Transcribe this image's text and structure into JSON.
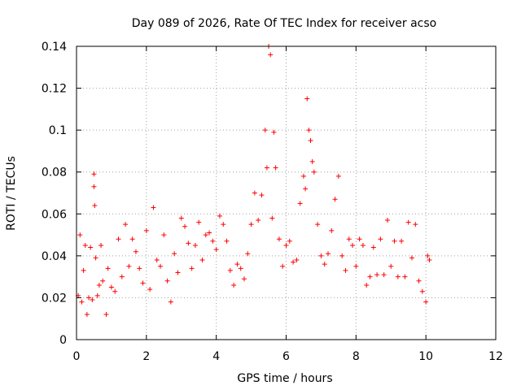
{
  "chart_data": {
    "type": "scatter",
    "title": "Day 089 of 2026, Rate Of TEC Index for receiver acso",
    "xlabel": "GPS time / hours",
    "ylabel": "ROTI / TECUs",
    "xlim": [
      0,
      12
    ],
    "ylim": [
      0,
      0.14
    ],
    "xticks": [
      "0",
      "2",
      "4",
      "6",
      "8",
      "10",
      "12"
    ],
    "yticks": [
      "0",
      "0.02",
      "0.04",
      "0.06",
      "0.08",
      "0.1",
      "0.12",
      "0.14"
    ],
    "grid": true,
    "marker": "plus",
    "color": "#ff0000",
    "series": [
      {
        "x": [
          0.05,
          0.1,
          0.15,
          0.2,
          0.25,
          0.3,
          0.35,
          0.4,
          0.45,
          0.5,
          0.5,
          0.52,
          0.55,
          0.6,
          0.65,
          0.7,
          0.75,
          0.85,
          0.9,
          1.0,
          1.1,
          1.2,
          1.3,
          1.4,
          1.5,
          1.6,
          1.7,
          1.8,
          1.9,
          2.0,
          2.1,
          2.2,
          2.3,
          2.4,
          2.5,
          2.6,
          2.7,
          2.8,
          2.9,
          3.0,
          3.1,
          3.2,
          3.3,
          3.4,
          3.5,
          3.6,
          3.7,
          3.8,
          3.9,
          4.0,
          4.1,
          4.2,
          4.3,
          4.4,
          4.5,
          4.6,
          4.7,
          4.8,
          4.9,
          5.0,
          5.1,
          5.2,
          5.3,
          5.4,
          5.45,
          5.5,
          5.55,
          5.6,
          5.65,
          5.7,
          5.8,
          5.9,
          6.0,
          6.1,
          6.2,
          6.3,
          6.4,
          6.5,
          6.55,
          6.6,
          6.65,
          6.7,
          6.75,
          6.8,
          6.9,
          7.0,
          7.1,
          7.2,
          7.3,
          7.4,
          7.5,
          7.6,
          7.7,
          7.8,
          7.9,
          8.0,
          8.1,
          8.2,
          8.3,
          8.4,
          8.5,
          8.6,
          8.7,
          8.8,
          8.9,
          9.0,
          9.1,
          9.2,
          9.3,
          9.4,
          9.5,
          9.6,
          9.7,
          9.8,
          9.9,
          10.0,
          10.05,
          10.1
        ],
        "y": [
          0.021,
          0.05,
          0.018,
          0.033,
          0.045,
          0.012,
          0.02,
          0.044,
          0.019,
          0.073,
          0.079,
          0.064,
          0.039,
          0.021,
          0.026,
          0.045,
          0.028,
          0.012,
          0.034,
          0.025,
          0.023,
          0.048,
          0.03,
          0.055,
          0.035,
          0.048,
          0.042,
          0.034,
          0.027,
          0.052,
          0.024,
          0.063,
          0.038,
          0.035,
          0.05,
          0.028,
          0.018,
          0.041,
          0.032,
          0.058,
          0.054,
          0.046,
          0.034,
          0.045,
          0.056,
          0.038,
          0.05,
          0.051,
          0.047,
          0.043,
          0.059,
          0.055,
          0.047,
          0.033,
          0.026,
          0.036,
          0.034,
          0.029,
          0.041,
          0.055,
          0.07,
          0.057,
          0.069,
          0.1,
          0.082,
          0.14,
          0.136,
          0.058,
          0.099,
          0.082,
          0.048,
          0.035,
          0.045,
          0.047,
          0.037,
          0.038,
          0.065,
          0.078,
          0.072,
          0.115,
          0.1,
          0.095,
          0.085,
          0.08,
          0.055,
          0.04,
          0.036,
          0.041,
          0.052,
          0.067,
          0.078,
          0.04,
          0.033,
          0.048,
          0.045,
          0.035,
          0.048,
          0.045,
          0.026,
          0.03,
          0.044,
          0.031,
          0.048,
          0.031,
          0.057,
          0.035,
          0.047,
          0.03,
          0.047,
          0.03,
          0.056,
          0.039,
          0.055,
          0.028,
          0.023,
          0.018,
          0.04,
          0.038
        ]
      }
    ]
  }
}
